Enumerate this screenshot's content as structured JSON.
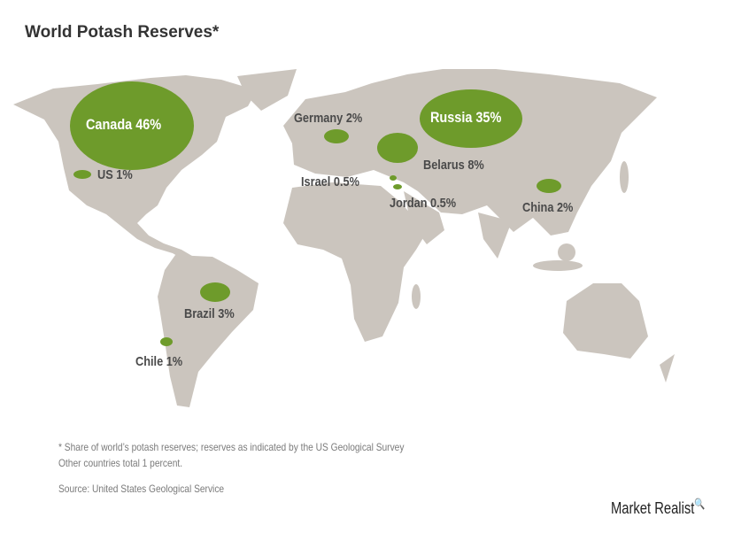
{
  "title": "World Potash Reserves*",
  "colors": {
    "land": "#cbc5be",
    "marker": "#6e9b2b",
    "label": "#4a4a4a"
  },
  "countries": [
    {
      "name": "Canada",
      "label": "Canada 46%",
      "share": 46
    },
    {
      "name": "Russia",
      "label": "Russia 35%",
      "share": 35
    },
    {
      "name": "Belarus",
      "label": "Belarus 8%",
      "share": 8
    },
    {
      "name": "Brazil",
      "label": "Brazil 3%",
      "share": 3
    },
    {
      "name": "Germany",
      "label": "Germany 2%",
      "share": 2
    },
    {
      "name": "China",
      "label": "China 2%",
      "share": 2
    },
    {
      "name": "US",
      "label": "US 1%",
      "share": 1
    },
    {
      "name": "Chile",
      "label": "Chile 1%",
      "share": 1
    },
    {
      "name": "Israel",
      "label": "Israel 0.5%",
      "share": 0.5
    },
    {
      "name": "Jordan",
      "label": "Jordan 0.5%",
      "share": 0.5
    }
  ],
  "footnotes": {
    "note1": "* Share of world’s potash reserves; reserves as indicated by the US Geological Survey",
    "note2": "Other countries total 1 percent.",
    "source": "Source: United States Geological Service"
  },
  "logo": {
    "text": "Market Realist",
    "icon": "magnifier-icon"
  }
}
